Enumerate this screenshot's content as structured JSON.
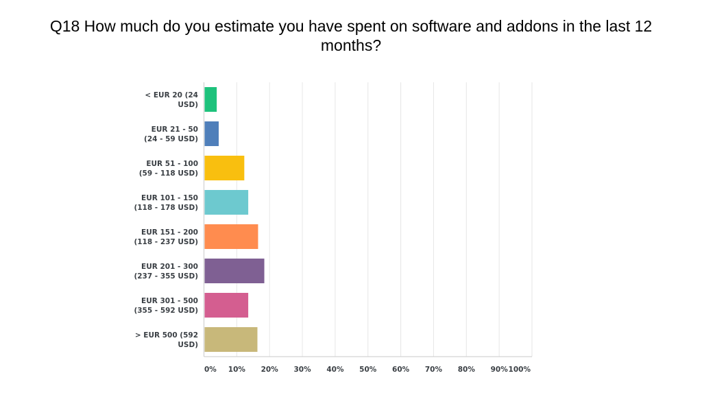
{
  "chart_data": {
    "type": "bar",
    "orientation": "horizontal",
    "title": "Q18 How much do you estimate you have spent on software and addons in the last 12 months?",
    "categories": [
      [
        "< EUR 20 (24",
        "USD)"
      ],
      [
        "EUR 21 - 50",
        "(24 - 59 USD)"
      ],
      [
        "EUR 51 - 100",
        "(59 - 118 USD)"
      ],
      [
        "EUR 101 - 150",
        "(118 - 178 USD)"
      ],
      [
        "EUR 151 - 200",
        "(118 - 237 USD)"
      ],
      [
        "EUR 201 - 300",
        "(237 - 355 USD)"
      ],
      [
        "EUR 301 - 500",
        "(355 - 592 USD)"
      ],
      [
        "> EUR 500 (592",
        "USD)"
      ]
    ],
    "values": [
      3.9,
      4.5,
      12.3,
      13.5,
      16.5,
      18.4,
      13.5,
      16.3
    ],
    "colors": [
      "#1ec27c",
      "#4f7fba",
      "#f9bf0f",
      "#6dc9cf",
      "#ff8c4f",
      "#7f6093",
      "#d45e90",
      "#c8b87a"
    ],
    "xlim": [
      0,
      100
    ],
    "xticks": [
      "0%",
      "10%",
      "20%",
      "30%",
      "40%",
      "50%",
      "60%",
      "70%",
      "80%",
      "90%",
      "100%"
    ],
    "grid": true,
    "gridColor": "#e6e6e6",
    "axisColor": "#c9c9c9"
  }
}
